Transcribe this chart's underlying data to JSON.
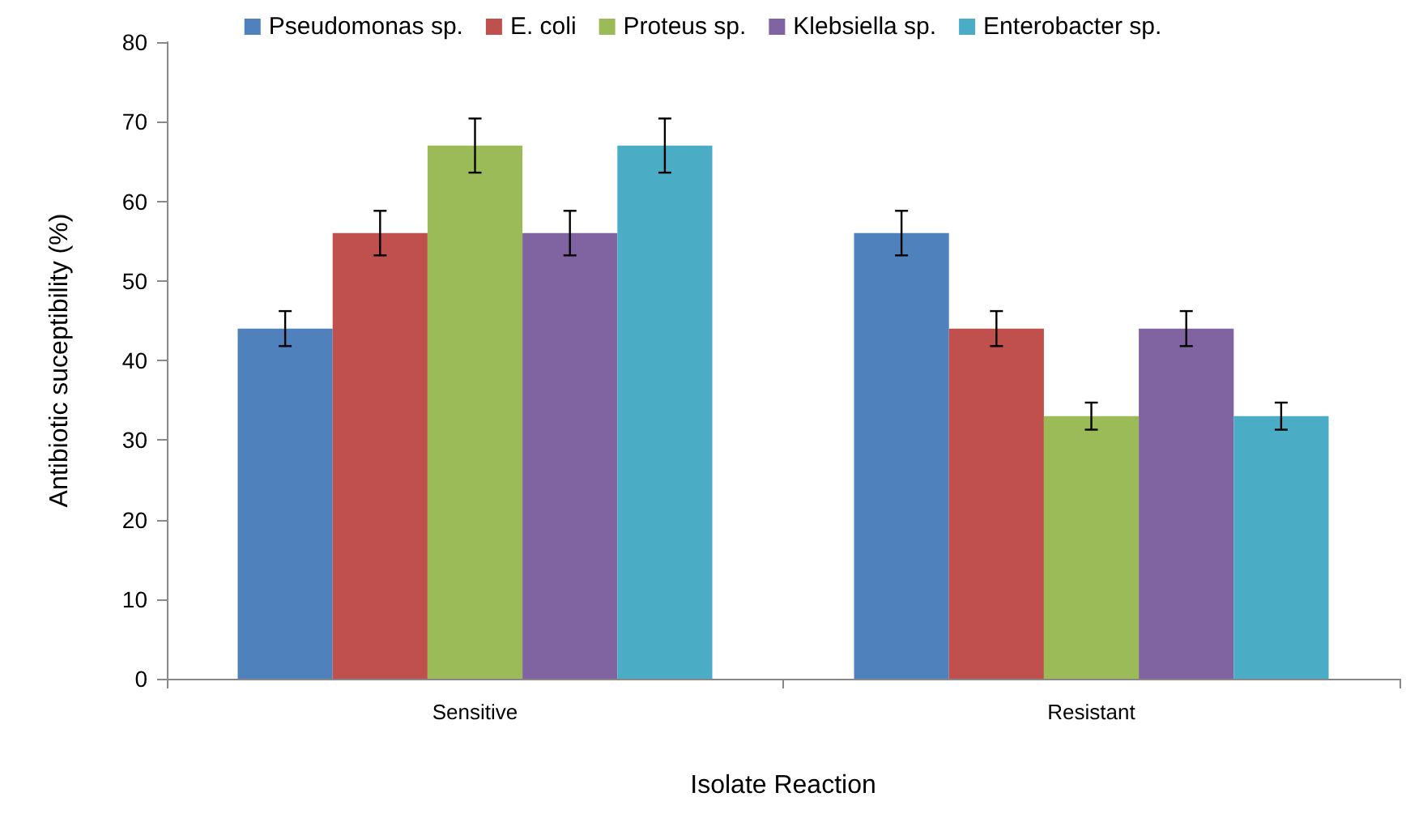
{
  "chart_data": {
    "type": "bar",
    "xlabel": "Isolate Reaction",
    "ylabel": "Antibiotic suceptibility (%)",
    "categories": [
      "Sensitive",
      "Resistant"
    ],
    "series": [
      {
        "name": "Pseudomonas sp.",
        "color": "#4f81bd",
        "values": [
          44,
          56
        ],
        "errors": [
          2.2,
          2.8
        ]
      },
      {
        "name": "E. coli",
        "color": "#c0504d",
        "values": [
          56,
          44
        ],
        "errors": [
          2.8,
          2.2
        ]
      },
      {
        "name": "Proteus sp.",
        "color": "#9bbb59",
        "values": [
          67,
          33
        ],
        "errors": [
          3.4,
          1.7
        ]
      },
      {
        "name": "Klebsiella sp.",
        "color": "#8064a2",
        "values": [
          56,
          44
        ],
        "errors": [
          2.8,
          2.2
        ]
      },
      {
        "name": "Enterobacter sp.",
        "color": "#4bacc6",
        "values": [
          67,
          33
        ],
        "errors": [
          3.4,
          1.7
        ]
      }
    ],
    "ylim": [
      0,
      80
    ],
    "yticks": [
      0,
      10,
      20,
      30,
      40,
      50,
      60,
      70,
      80
    ],
    "grid": false,
    "legend": "top"
  }
}
